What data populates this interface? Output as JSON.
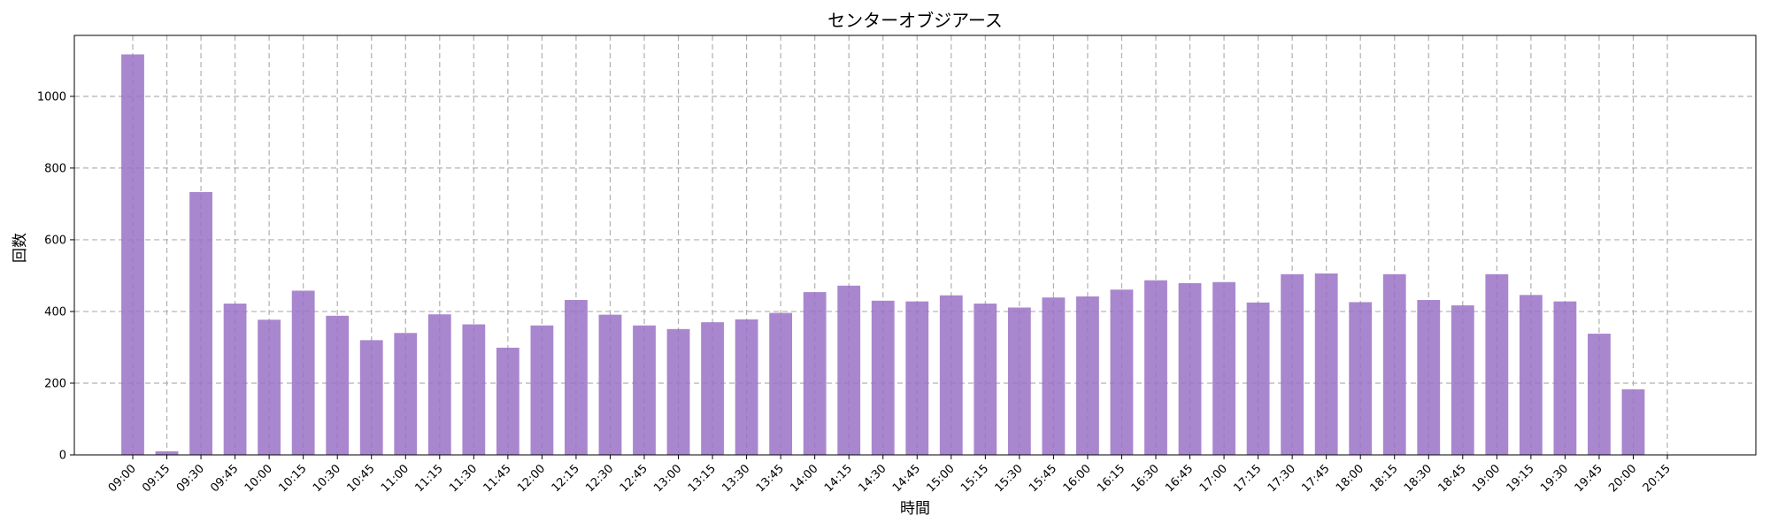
{
  "chart_data": {
    "type": "bar",
    "title": "センターオブジアース",
    "xlabel": "時間",
    "ylabel": "回数",
    "ylim": [
      0,
      1170
    ],
    "yticks": [
      0,
      200,
      400,
      600,
      800,
      1000
    ],
    "grid": true,
    "bar_color": "#9a72c6",
    "categories": [
      "09:00",
      "09:15",
      "09:30",
      "09:45",
      "10:00",
      "10:15",
      "10:30",
      "10:45",
      "11:00",
      "11:15",
      "11:30",
      "11:45",
      "12:00",
      "12:15",
      "12:30",
      "12:45",
      "13:00",
      "13:15",
      "13:30",
      "13:45",
      "14:00",
      "14:15",
      "14:30",
      "14:45",
      "15:00",
      "15:15",
      "15:30",
      "15:45",
      "16:00",
      "16:15",
      "16:30",
      "16:45",
      "17:00",
      "17:15",
      "17:30",
      "17:45",
      "18:00",
      "18:15",
      "18:30",
      "18:45",
      "19:00",
      "19:15",
      "19:30",
      "19:45",
      "20:00",
      "20:15"
    ],
    "values": [
      1117,
      10,
      733,
      422,
      377,
      458,
      388,
      320,
      340,
      392,
      364,
      299,
      361,
      432,
      391,
      361,
      351,
      370,
      378,
      396,
      454,
      472,
      430,
      428,
      445,
      422,
      411,
      439,
      442,
      461,
      487,
      479,
      482,
      425,
      504,
      506,
      426,
      504,
      432,
      417,
      504,
      446,
      428,
      338,
      183,
      0
    ]
  }
}
